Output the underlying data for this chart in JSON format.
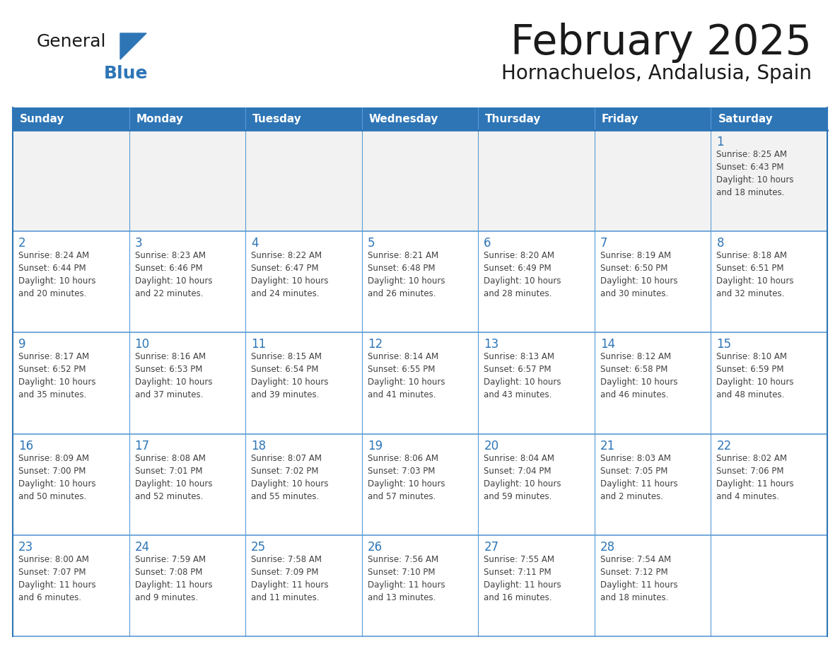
{
  "title": "February 2025",
  "subtitle": "Hornachuelos, Andalusia, Spain",
  "header_bg": "#2E75B6",
  "header_text_color": "#FFFFFF",
  "cell_bg": "#FFFFFF",
  "week1_bg": "#F2F2F2",
  "border_color": "#2E75B6",
  "border_color_light": "#5B9BD5",
  "day_headers": [
    "Sunday",
    "Monday",
    "Tuesday",
    "Wednesday",
    "Thursday",
    "Friday",
    "Saturday"
  ],
  "title_color": "#1a1a1a",
  "subtitle_color": "#1a1a1a",
  "day_number_color": "#2E75B6",
  "cell_text_color": "#404040",
  "weeks": [
    [
      {
        "day": "",
        "info": ""
      },
      {
        "day": "",
        "info": ""
      },
      {
        "day": "",
        "info": ""
      },
      {
        "day": "",
        "info": ""
      },
      {
        "day": "",
        "info": ""
      },
      {
        "day": "",
        "info": ""
      },
      {
        "day": "1",
        "info": "Sunrise: 8:25 AM\nSunset: 6:43 PM\nDaylight: 10 hours\nand 18 minutes."
      }
    ],
    [
      {
        "day": "2",
        "info": "Sunrise: 8:24 AM\nSunset: 6:44 PM\nDaylight: 10 hours\nand 20 minutes."
      },
      {
        "day": "3",
        "info": "Sunrise: 8:23 AM\nSunset: 6:46 PM\nDaylight: 10 hours\nand 22 minutes."
      },
      {
        "day": "4",
        "info": "Sunrise: 8:22 AM\nSunset: 6:47 PM\nDaylight: 10 hours\nand 24 minutes."
      },
      {
        "day": "5",
        "info": "Sunrise: 8:21 AM\nSunset: 6:48 PM\nDaylight: 10 hours\nand 26 minutes."
      },
      {
        "day": "6",
        "info": "Sunrise: 8:20 AM\nSunset: 6:49 PM\nDaylight: 10 hours\nand 28 minutes."
      },
      {
        "day": "7",
        "info": "Sunrise: 8:19 AM\nSunset: 6:50 PM\nDaylight: 10 hours\nand 30 minutes."
      },
      {
        "day": "8",
        "info": "Sunrise: 8:18 AM\nSunset: 6:51 PM\nDaylight: 10 hours\nand 32 minutes."
      }
    ],
    [
      {
        "day": "9",
        "info": "Sunrise: 8:17 AM\nSunset: 6:52 PM\nDaylight: 10 hours\nand 35 minutes."
      },
      {
        "day": "10",
        "info": "Sunrise: 8:16 AM\nSunset: 6:53 PM\nDaylight: 10 hours\nand 37 minutes."
      },
      {
        "day": "11",
        "info": "Sunrise: 8:15 AM\nSunset: 6:54 PM\nDaylight: 10 hours\nand 39 minutes."
      },
      {
        "day": "12",
        "info": "Sunrise: 8:14 AM\nSunset: 6:55 PM\nDaylight: 10 hours\nand 41 minutes."
      },
      {
        "day": "13",
        "info": "Sunrise: 8:13 AM\nSunset: 6:57 PM\nDaylight: 10 hours\nand 43 minutes."
      },
      {
        "day": "14",
        "info": "Sunrise: 8:12 AM\nSunset: 6:58 PM\nDaylight: 10 hours\nand 46 minutes."
      },
      {
        "day": "15",
        "info": "Sunrise: 8:10 AM\nSunset: 6:59 PM\nDaylight: 10 hours\nand 48 minutes."
      }
    ],
    [
      {
        "day": "16",
        "info": "Sunrise: 8:09 AM\nSunset: 7:00 PM\nDaylight: 10 hours\nand 50 minutes."
      },
      {
        "day": "17",
        "info": "Sunrise: 8:08 AM\nSunset: 7:01 PM\nDaylight: 10 hours\nand 52 minutes."
      },
      {
        "day": "18",
        "info": "Sunrise: 8:07 AM\nSunset: 7:02 PM\nDaylight: 10 hours\nand 55 minutes."
      },
      {
        "day": "19",
        "info": "Sunrise: 8:06 AM\nSunset: 7:03 PM\nDaylight: 10 hours\nand 57 minutes."
      },
      {
        "day": "20",
        "info": "Sunrise: 8:04 AM\nSunset: 7:04 PM\nDaylight: 10 hours\nand 59 minutes."
      },
      {
        "day": "21",
        "info": "Sunrise: 8:03 AM\nSunset: 7:05 PM\nDaylight: 11 hours\nand 2 minutes."
      },
      {
        "day": "22",
        "info": "Sunrise: 8:02 AM\nSunset: 7:06 PM\nDaylight: 11 hours\nand 4 minutes."
      }
    ],
    [
      {
        "day": "23",
        "info": "Sunrise: 8:00 AM\nSunset: 7:07 PM\nDaylight: 11 hours\nand 6 minutes."
      },
      {
        "day": "24",
        "info": "Sunrise: 7:59 AM\nSunset: 7:08 PM\nDaylight: 11 hours\nand 9 minutes."
      },
      {
        "day": "25",
        "info": "Sunrise: 7:58 AM\nSunset: 7:09 PM\nDaylight: 11 hours\nand 11 minutes."
      },
      {
        "day": "26",
        "info": "Sunrise: 7:56 AM\nSunset: 7:10 PM\nDaylight: 11 hours\nand 13 minutes."
      },
      {
        "day": "27",
        "info": "Sunrise: 7:55 AM\nSunset: 7:11 PM\nDaylight: 11 hours\nand 16 minutes."
      },
      {
        "day": "28",
        "info": "Sunrise: 7:54 AM\nSunset: 7:12 PM\nDaylight: 11 hours\nand 18 minutes."
      },
      {
        "day": "",
        "info": ""
      }
    ]
  ],
  "logo_general_color": "#1a1a1a",
  "logo_blue_color": "#2E75B6"
}
